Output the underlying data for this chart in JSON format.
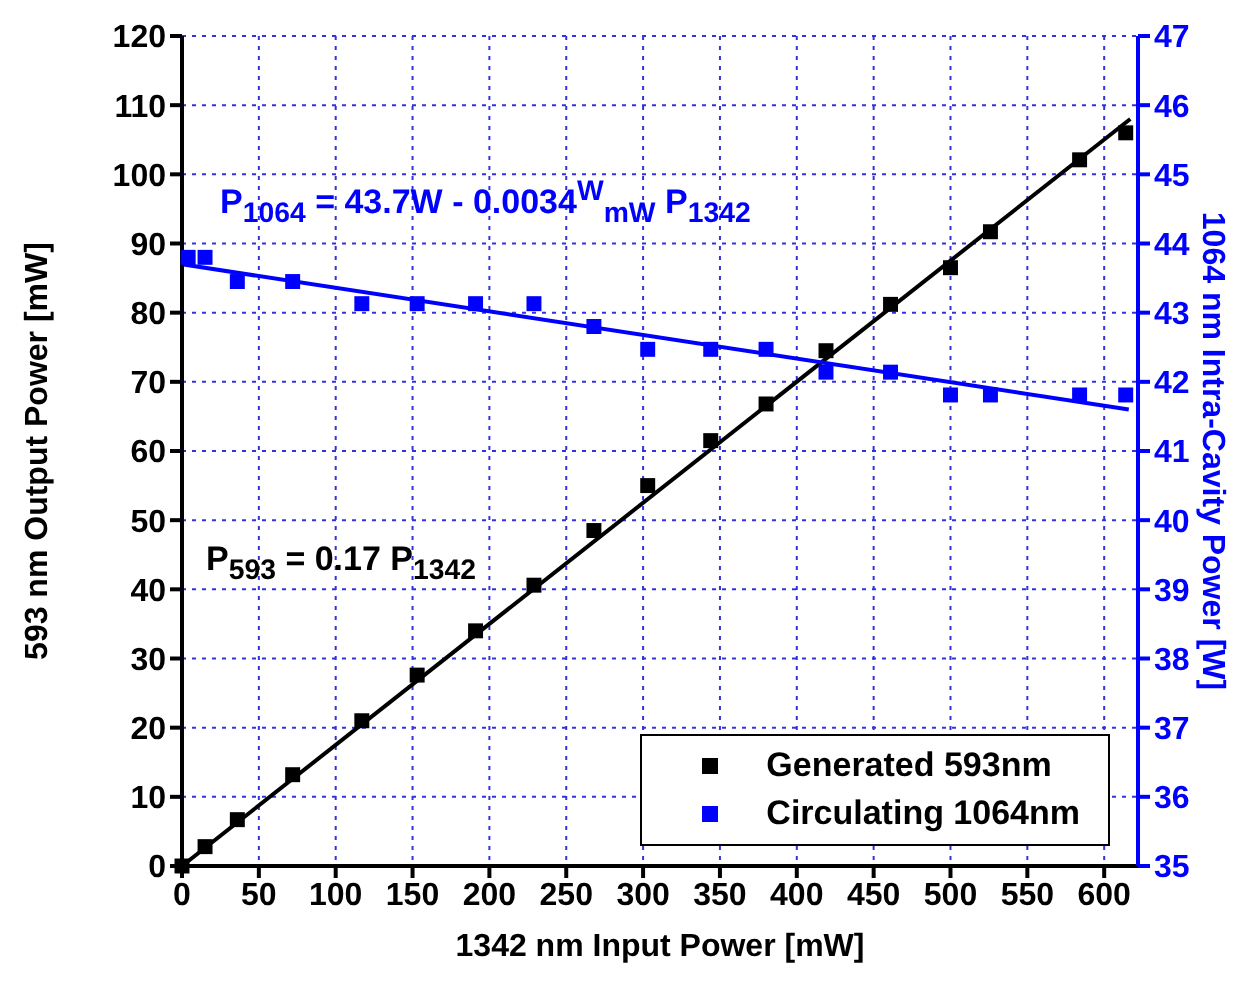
{
  "chart_data": {
    "type": "scatter",
    "xlabel": "1342 nm Input Power [mW]",
    "ylabel": "593 nm Output Power [mW]",
    "y2label": "1064 nm Intra-Cavity Power [W]",
    "annotations": [
      "P$_{1064}$ = 43.7W - 0.0034$^{W}$$_{mW}$ P$_{1342}$",
      "P$_{593}$ = 0.17 P$_{1342}$"
    ],
    "xlim": [
      0,
      622
    ],
    "xticks": [
      0,
      50,
      100,
      150,
      200,
      250,
      300,
      350,
      400,
      450,
      500,
      550,
      600
    ],
    "ylim": [
      0,
      120
    ],
    "yticks": [
      0,
      10,
      20,
      30,
      40,
      50,
      60,
      70,
      80,
      90,
      100,
      110,
      120
    ],
    "y2lim": [
      35,
      47
    ],
    "y2ticks": [
      35,
      36,
      37,
      38,
      39,
      40,
      41,
      42,
      43,
      44,
      45,
      46,
      47
    ],
    "grid": true,
    "legend": "bottom right",
    "marker": "square",
    "line_style": "solid",
    "series": [
      {
        "name": "Generated 593nm",
        "color": "#000000",
        "x": [
          0,
          15,
          36,
          72,
          117,
          153,
          191,
          229,
          268,
          303,
          344,
          380,
          419,
          461,
          500,
          526,
          584,
          614
        ],
        "values": [
          0,
          2.8,
          6.7,
          13.2,
          21,
          27.6,
          34,
          40.6,
          48.5,
          55,
          61.5,
          66.8,
          74.5,
          81.2,
          86.5,
          91.7,
          102.1,
          106
        ]
      },
      {
        "name": "Circulating 1064nm",
        "color": "#0000ff",
        "axis": "y2",
        "x": [
          4,
          15,
          36,
          72,
          117,
          153,
          191,
          229,
          268,
          303,
          344,
          380,
          419,
          461,
          500,
          526,
          584,
          614
        ],
        "values": [
          43.8,
          43.8,
          43.45,
          43.45,
          43.13,
          43.13,
          43.13,
          43.13,
          42.8,
          42.47,
          42.47,
          42.47,
          42.14,
          42.14,
          41.81,
          41.81,
          41.81,
          41.81
        ]
      },
      {
        "type": "line",
        "marker": "none",
        "color": "#000000",
        "x": [
          0,
          617
        ],
        "values": [
          0,
          108
        ]
      },
      {
        "type": "line",
        "marker": "none",
        "color": "#0000ff",
        "axis": "y2",
        "x": [
          0,
          616
        ],
        "values": [
          43.7,
          41.6
        ]
      }
    ]
  }
}
